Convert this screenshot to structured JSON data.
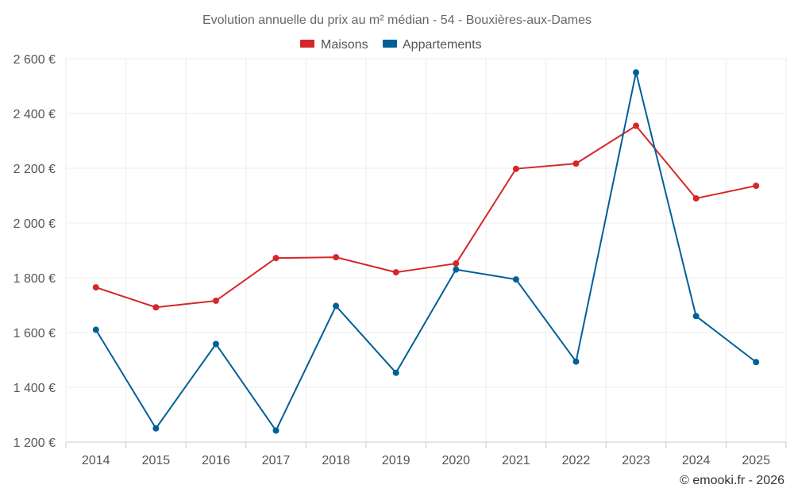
{
  "chart_data": {
    "type": "line",
    "title": "Evolution annuelle du prix au m² médian - 54 - Bouxières-aux-Dames",
    "categories": [
      "2014",
      "2015",
      "2016",
      "2017",
      "2018",
      "2019",
      "2020",
      "2021",
      "2022",
      "2023",
      "2024",
      "2025"
    ],
    "series": [
      {
        "name": "Maisons",
        "color": "#d62728",
        "values": [
          1765,
          1692,
          1716,
          1872,
          1875,
          1820,
          1852,
          2198,
          2217,
          2355,
          2090,
          2136
        ]
      },
      {
        "name": "Appartements",
        "color": "#005f99",
        "values": [
          1610,
          1250,
          1558,
          1242,
          1697,
          1453,
          1830,
          1794,
          1494,
          2550,
          1660,
          1492
        ]
      }
    ],
    "ylim": [
      1200,
      2600
    ],
    "y_ticks": [
      1200,
      1400,
      1600,
      1800,
      2000,
      2200,
      2400,
      2600
    ],
    "y_tick_labels": [
      "1 200 €",
      "1 400 €",
      "1 600 €",
      "1 800 €",
      "2 000 €",
      "2 200 €",
      "2 400 €",
      "2 600 €"
    ],
    "xlabel": "",
    "ylabel": "",
    "grid": true,
    "legend_position": "top-center"
  },
  "credit": "© emooki.fr - 2026"
}
